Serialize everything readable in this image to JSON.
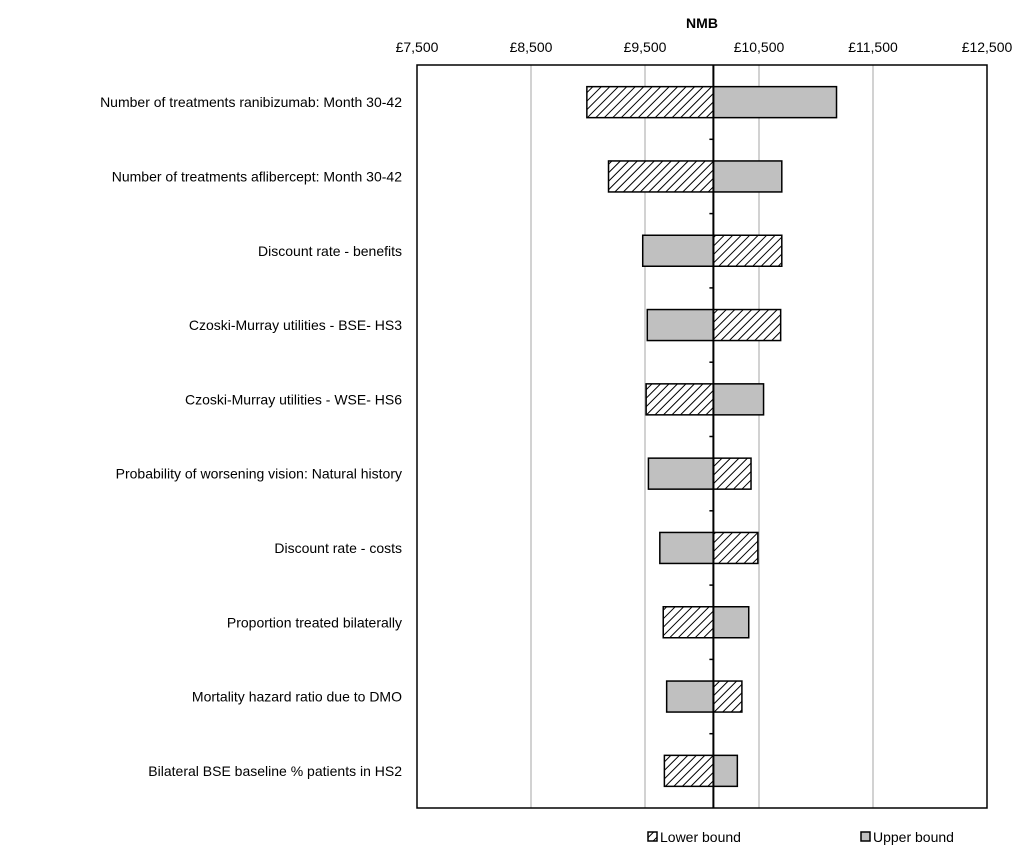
{
  "chart_data": {
    "type": "tornado-bar",
    "title": "",
    "xlabel": "NMB",
    "xlim": [
      7500,
      12500
    ],
    "xticks": [
      "£7,500",
      "£8,500",
      "£9,500",
      "£10,500",
      "£11,500",
      "£12,500"
    ],
    "xtick_values": [
      7500,
      8500,
      9500,
      10500,
      11500,
      12500
    ],
    "base_value": 10100,
    "grid": "vertical",
    "legend_position": "bottom-right",
    "legend": [
      {
        "key": "lower",
        "label": "Lower bound",
        "fill": "hatched"
      },
      {
        "key": "upper",
        "label": "Upper bound",
        "fill": "solid-grey"
      }
    ],
    "colors": {
      "upper": "#c0c0c0",
      "hatch": "#000000",
      "grid": "#a6a6a6"
    },
    "categories": [
      "Number of treatments ranibizumab: Month 30-42",
      "Number of treatments aflibercept: Month 30-42",
      "Discount rate - benefits",
      "Czoski-Murray utilities - BSE- HS3",
      "Czoski-Murray utilities - WSE- HS6",
      "Probability of worsening vision: Natural history",
      "Discount rate - costs",
      "Proportion treated bilaterally",
      "Mortality hazard ratio due to DMO",
      "Bilateral BSE baseline % patients in HS2"
    ],
    "series": [
      {
        "name": "Lower bound",
        "values": [
          8990,
          9180,
          10700,
          10690,
          9510,
          10430,
          10490,
          9660,
          10350,
          9670
        ]
      },
      {
        "name": "Upper bound",
        "values": [
          11180,
          10700,
          9480,
          9520,
          10540,
          9530,
          9630,
          10410,
          9690,
          10310
        ]
      }
    ]
  }
}
